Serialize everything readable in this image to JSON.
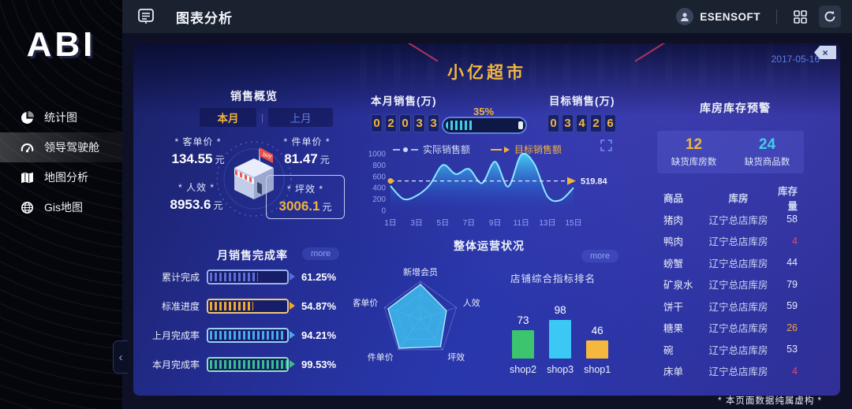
{
  "sidebar": {
    "logo": "ABI",
    "collapse_icon": "‹",
    "items": [
      {
        "label": "统计图",
        "icon": "pie-chart-icon",
        "active": false
      },
      {
        "label": "领导驾驶舱",
        "icon": "gauge-icon",
        "active": true
      },
      {
        "label": "地图分析",
        "icon": "map-icon",
        "active": false
      },
      {
        "label": "Gis地图",
        "icon": "globe-icon",
        "active": false
      }
    ]
  },
  "header": {
    "title": "图表分析",
    "menu_icon": "report-list-icon",
    "user": {
      "name": "ESENSOFT",
      "avatar_icon": "user-icon"
    },
    "grid_icon": "grid-apps-icon",
    "refresh_icon": "refresh-icon"
  },
  "dashboard": {
    "title": "小亿超市",
    "date": "2017-05-16",
    "close_label": "×",
    "footnote": "* 本页面数据纯属虚构 *",
    "sales_overview": {
      "title": "销售概览",
      "tabs": [
        {
          "label": "本月",
          "active": true
        },
        {
          "label": "上月",
          "active": false
        }
      ],
      "tab_divider": "|",
      "stats": [
        {
          "label": "* 客单价 *",
          "value": "134.55",
          "unit": "元",
          "highlight": false
        },
        {
          "label": "* 件单价 *",
          "value": "81.47",
          "unit": "元",
          "highlight": false
        },
        {
          "label": "* 人效 *",
          "value": "8953.6",
          "unit": "元",
          "highlight": false
        },
        {
          "label": "* 坪效 *",
          "value": "3006.1",
          "unit": "元",
          "highlight": true
        }
      ]
    },
    "month_sales": {
      "label": "本月销售(万)",
      "digits": "02033",
      "percent": "35%"
    },
    "target_sales": {
      "label": "目标销售(万)",
      "digits": "03426"
    },
    "completion": {
      "title": "月销售完成率",
      "more_label": "more",
      "bars": [
        {
          "label": "累计完成",
          "value": "61.25%",
          "pct": 61.25,
          "color": "#5a6fd8",
          "border": "#9fb0f0"
        },
        {
          "label": "标准进度",
          "value": "54.87%",
          "pct": 54.87,
          "color": "#f0a830",
          "border": "#ecc878"
        },
        {
          "label": "上月完成率",
          "value": "94.21%",
          "pct": 94.21,
          "color": "#4aa8f0",
          "border": "#9cd0f5"
        },
        {
          "label": "本月完成率",
          "value": "99.53%",
          "pct": 99.53,
          "color": "#38c08a",
          "border": "#8ce0c0"
        }
      ]
    },
    "operations": {
      "title": "整体运营状况",
      "more_label": "more"
    },
    "warehouse": {
      "title": "库房库存预警",
      "summary": [
        {
          "value": "12",
          "label": "缺货库房数",
          "color": "#f0b43c"
        },
        {
          "value": "24",
          "label": "缺货商品数",
          "color": "#3fd0e8"
        }
      ],
      "table": {
        "headers": [
          "商品",
          "库房",
          "库存量"
        ],
        "rows": [
          {
            "product": "猪肉",
            "house": "辽宁总店库房",
            "qty": "58",
            "qty_color": "#e8ecf8"
          },
          {
            "product": "鸭肉",
            "house": "辽宁总店库房",
            "qty": "4",
            "qty_color": "#e8486e"
          },
          {
            "product": "螃蟹",
            "house": "辽宁总店库房",
            "qty": "44",
            "qty_color": "#e8ecf8"
          },
          {
            "product": "矿泉水",
            "house": "辽宁总店库房",
            "qty": "79",
            "qty_color": "#e8ecf8"
          },
          {
            "product": "饼干",
            "house": "辽宁总店库房",
            "qty": "59",
            "qty_color": "#e8ecf8"
          },
          {
            "product": "糖果",
            "house": "辽宁总店库房",
            "qty": "26",
            "qty_color": "#f0a43c"
          },
          {
            "product": "碗",
            "house": "辽宁总店库房",
            "qty": "53",
            "qty_color": "#e8ecf8"
          },
          {
            "product": "床单",
            "house": "辽宁总店库房",
            "qty": "4",
            "qty_color": "#e8486e"
          }
        ]
      }
    }
  },
  "chart_data": [
    {
      "type": "area",
      "name": "实际销售额与目标销售额",
      "legend": [
        "实际销售额",
        "目标销售额"
      ],
      "x_ticks": [
        "1日",
        "3日",
        "5日",
        "7日",
        "9日",
        "11日",
        "13日",
        "15日"
      ],
      "series": [
        {
          "name": "实际销售额",
          "values": [
            430,
            200,
            260,
            450,
            800,
            640,
            730,
            480,
            860,
            420,
            980,
            820,
            250,
            180,
            400
          ]
        }
      ],
      "target_line": {
        "name": "目标销售额",
        "value": 519.84,
        "color": "#f0b43c"
      },
      "ylim": [
        0,
        1000
      ],
      "y_ticks": [
        0,
        200,
        400,
        600,
        800,
        1000
      ],
      "area_color": "#3ec8f0"
    },
    {
      "type": "radar",
      "labels": [
        "新增会员",
        "人效",
        "坪效",
        "件单价",
        "客单价"
      ],
      "values": [
        0.92,
        0.72,
        0.9,
        0.95,
        0.9
      ],
      "max": 1,
      "fill_color": "#3ec6f2"
    },
    {
      "type": "bar",
      "title": "店铺综合指标排名",
      "categories": [
        "shop2",
        "shop3",
        "shop1"
      ],
      "values": [
        73,
        98,
        46
      ],
      "colors": [
        "#3cc46e",
        "#3cc8f5",
        "#f5b83c"
      ]
    }
  ]
}
